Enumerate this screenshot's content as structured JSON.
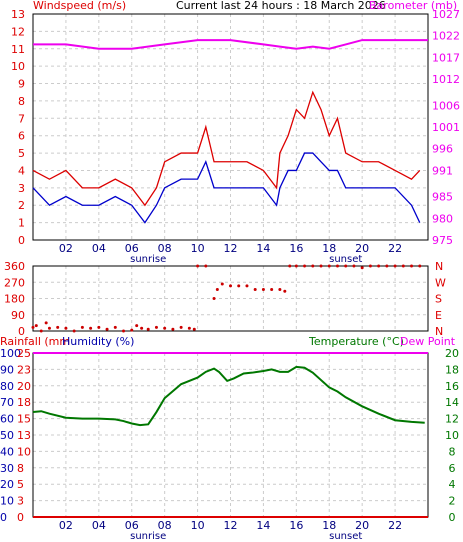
{
  "header": {
    "left_label": "Windspeed (m/s)",
    "center_label": "Current last 24 hours : 18 March 2026",
    "right_label": "Barometer (mb)"
  },
  "colors": {
    "wind_avg": "#0000cc",
    "wind_gust": "#dd0000",
    "barometer": "#ee00ee",
    "direction": "#cc0000",
    "temperature": "#007700",
    "humidity": "#0000aa",
    "rainfall": "#dd0000",
    "dewpoint": "#ee00ee",
    "grid": "#cccccc",
    "frame": "#000000"
  },
  "chart_data": [
    {
      "type": "line",
      "title": "Windspeed / Barometer",
      "xlabel": "",
      "x_ticks": [
        "02",
        "04",
        "06",
        "08",
        "10",
        "12",
        "14",
        "16",
        "18",
        "20",
        "22"
      ],
      "x_annotations": [
        "sunrise",
        "sunset"
      ],
      "sunrise_hour": 7,
      "sunset_hour": 19,
      "ylim_left": [
        0,
        13
      ],
      "y_ticks_left": [
        0,
        1,
        2,
        3,
        4,
        5,
        6,
        7,
        8,
        9,
        10,
        11,
        12,
        13
      ],
      "ylim_right": [
        975,
        1027
      ],
      "y_ticks_right": [
        975,
        980,
        985,
        991,
        996,
        1001,
        1006,
        1012,
        1017,
        1022,
        1027
      ],
      "series": [
        {
          "name": "Windspeed",
          "axis": "left",
          "x": [
            0,
            1,
            2,
            3,
            4,
            5,
            6,
            6.8,
            7.5,
            8,
            9,
            10,
            10.5,
            11,
            12,
            13,
            14,
            14.8,
            15,
            15.5,
            16,
            16.5,
            17,
            17.5,
            18,
            18.5,
            19,
            20,
            21,
            22,
            23,
            23.5
          ],
          "y": [
            3,
            2,
            2.5,
            2,
            2,
            2.5,
            2,
            1,
            2,
            3,
            3.5,
            3.5,
            4.5,
            3,
            3,
            3,
            3,
            2,
            3,
            4,
            4,
            5,
            5,
            4.5,
            4,
            4,
            3,
            3,
            3,
            3,
            2,
            1
          ]
        },
        {
          "name": "Gust",
          "axis": "left",
          "x": [
            0,
            1,
            2,
            3,
            4,
            5,
            6,
            6.8,
            7.5,
            8,
            9,
            10,
            10.5,
            11,
            12,
            13,
            14,
            14.8,
            15,
            15.5,
            16,
            16.5,
            17,
            17.5,
            18,
            18.5,
            19,
            20,
            21,
            22,
            23,
            23.5
          ],
          "y": [
            4,
            3.5,
            4,
            3,
            3,
            3.5,
            3,
            2,
            3,
            4.5,
            5,
            5,
            6.5,
            4.5,
            4.5,
            4.5,
            4,
            3,
            5,
            6,
            7.5,
            7,
            8.5,
            7.5,
            6,
            7,
            5,
            4.5,
            4.5,
            4,
            3.5,
            4
          ]
        },
        {
          "name": "Barometer",
          "axis": "right",
          "x": [
            0,
            2,
            4,
            6,
            8,
            10,
            12,
            14,
            15,
            16,
            17,
            18,
            19,
            20,
            22,
            24
          ],
          "y": [
            1020,
            1020,
            1019,
            1019,
            1020,
            1021,
            1021,
            1020,
            1019.5,
            1019,
            1019.5,
            1019,
            1020,
            1021,
            1021,
            1021
          ]
        }
      ]
    },
    {
      "type": "scatter",
      "title": "Wind direction",
      "ylim": [
        0,
        360
      ],
      "y_ticks": [
        0,
        90,
        180,
        270,
        360
      ],
      "y_ticks_right": [
        "N",
        "E",
        "S",
        "W",
        "N"
      ],
      "x_ticks": [
        "02",
        "04",
        "06",
        "08",
        "10",
        "12",
        "14",
        "16",
        "18",
        "20",
        "22"
      ],
      "series": [
        {
          "name": "Direction",
          "x": [
            0,
            0.2,
            0.5,
            0.8,
            1,
            1.5,
            2,
            2.5,
            3,
            3.5,
            4,
            4.5,
            5,
            5.5,
            6,
            6.3,
            6.6,
            7,
            7.5,
            8,
            8.5,
            9,
            9.5,
            9.8,
            10,
            10.5,
            11,
            11.2,
            11.5,
            12,
            12.5,
            13,
            13.5,
            14,
            14.5,
            15,
            15.3,
            15.6,
            16,
            16.5,
            17,
            17.5,
            18,
            18.5,
            19,
            19.5,
            20,
            20.5,
            21,
            21.5,
            22,
            22.5,
            23,
            23.5
          ],
          "y": [
            20,
            30,
            0,
            45,
            15,
            20,
            15,
            0,
            20,
            15,
            20,
            10,
            20,
            0,
            5,
            30,
            15,
            10,
            20,
            15,
            10,
            20,
            15,
            10,
            360,
            360,
            180,
            230,
            260,
            250,
            250,
            250,
            230,
            230,
            230,
            230,
            220,
            360,
            360,
            360,
            360,
            360,
            360,
            360,
            360,
            360,
            350,
            360,
            360,
            360,
            360,
            360,
            360,
            360
          ]
        }
      ]
    },
    {
      "type": "line",
      "title": "Temperature / Humidity",
      "left_labels": [
        "Rainfall (mm",
        "Humidity (%)"
      ],
      "right_labels": [
        "Temperature (°C)",
        "Dew Point"
      ],
      "humidity_ticks": [
        0,
        10,
        20,
        30,
        40,
        50,
        60,
        70,
        80,
        90,
        100
      ],
      "rain_ticks": [
        0,
        3,
        5,
        8,
        10,
        13,
        15,
        18,
        20,
        23,
        25
      ],
      "temperature_ticks": [
        0,
        2,
        4,
        6,
        8,
        10,
        12,
        14,
        16,
        18,
        20
      ],
      "x_ticks": [
        "02",
        "04",
        "06",
        "08",
        "10",
        "12",
        "14",
        "16",
        "18",
        "20",
        "22"
      ],
      "x_annotations": [
        "sunrise",
        "sunset"
      ],
      "ylim_temperature": [
        0,
        20
      ],
      "ylim_humidity": [
        0,
        100
      ],
      "series": [
        {
          "name": "Temperature",
          "axis": "right",
          "x": [
            0,
            0.5,
            1,
            2,
            3,
            4,
            5,
            5.5,
            6,
            6.5,
            7,
            7.5,
            8,
            9,
            10,
            10.5,
            11,
            11.3,
            11.8,
            12.2,
            12.8,
            13.3,
            14,
            14.5,
            15,
            15.5,
            16,
            16.5,
            17,
            17.5,
            18,
            18.5,
            19,
            20,
            21,
            22,
            23,
            23.8
          ],
          "y": [
            12.8,
            12.9,
            12.6,
            12.1,
            12.0,
            12.0,
            11.9,
            11.7,
            11.4,
            11.2,
            11.3,
            12.8,
            14.5,
            16.2,
            17.0,
            17.7,
            18.1,
            17.7,
            16.6,
            16.9,
            17.5,
            17.6,
            17.8,
            18.0,
            17.7,
            17.7,
            18.3,
            18.2,
            17.6,
            16.7,
            15.8,
            15.3,
            14.6,
            13.5,
            12.6,
            11.8,
            11.6,
            11.5
          ]
        },
        {
          "name": "Humidity",
          "axis": "left",
          "x": [
            0,
            24
          ],
          "y": [
            100,
            100
          ]
        },
        {
          "name": "Dew Point",
          "axis": "right",
          "x": [
            0,
            24
          ],
          "y": [
            20,
            20
          ]
        },
        {
          "name": "Rainfall",
          "axis": "left",
          "x": [
            0,
            24
          ],
          "y": [
            0,
            0
          ]
        }
      ]
    }
  ]
}
